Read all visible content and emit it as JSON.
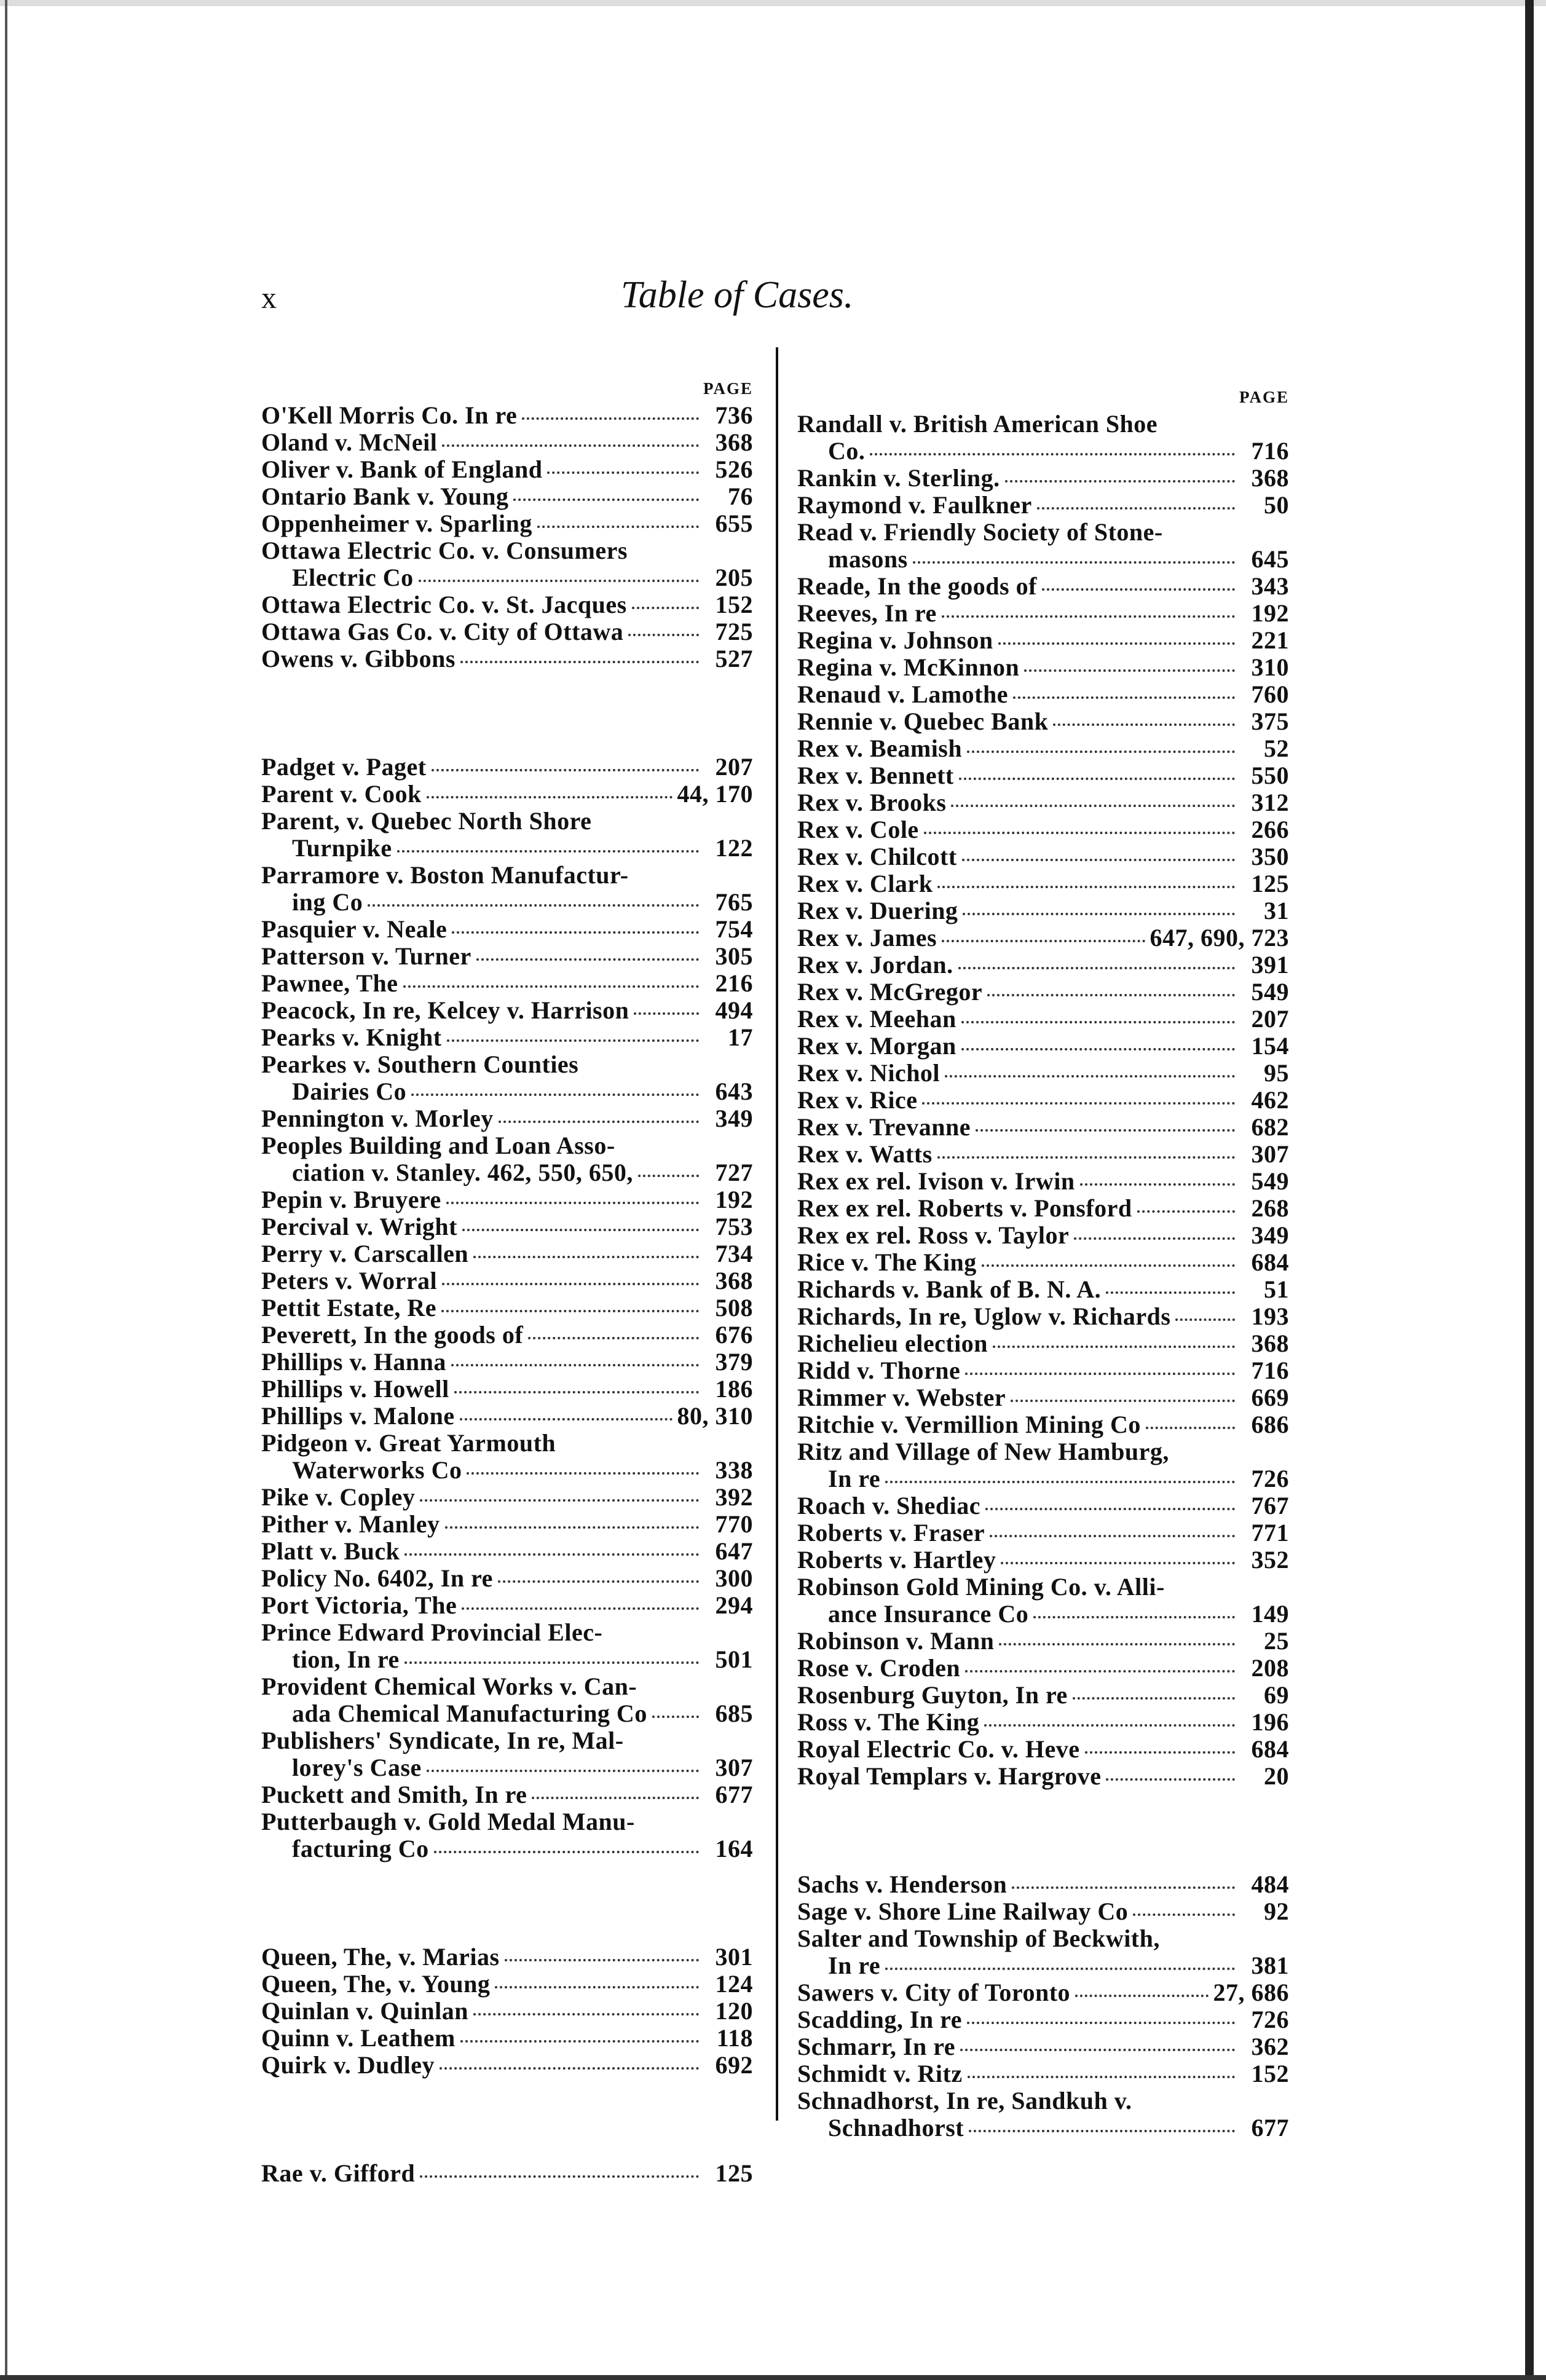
{
  "header": {
    "page_number": "x",
    "title": "Table of Cases."
  },
  "page_label": "PAGE",
  "left": [
    {
      "name": "O'Kell Morris Co. In re",
      "page": "736"
    },
    {
      "name": "Oland v. McNeil",
      "page": "368"
    },
    {
      "name": "Oliver v. Bank of England",
      "page": "526"
    },
    {
      "name": "Ontario Bank v. Young",
      "page": "76"
    },
    {
      "name": "Oppenheimer v. Sparling",
      "page": "655"
    },
    {
      "name": "Ottawa Electric Co. v. Consumers",
      "cont": "Electric Co",
      "page": "205"
    },
    {
      "name": "Ottawa Electric Co. v. St. Jacques",
      "page": "152"
    },
    {
      "name": "Ottawa Gas Co. v. City of Ottawa",
      "page": "725"
    },
    {
      "name": "Owens v. Gibbons",
      "page": "527"
    },
    {
      "gap": true
    },
    {
      "name": "Padget v. Paget",
      "page": "207"
    },
    {
      "name": "Parent v. Cook",
      "page": "44, 170"
    },
    {
      "name": "Parent, v. Quebec North Shore",
      "cont": "Turnpike",
      "page": "122"
    },
    {
      "name": "Parramore v. Boston Manufactur-",
      "cont": "ing Co",
      "page": "765"
    },
    {
      "name": "Pasquier v. Neale",
      "page": "754"
    },
    {
      "name": "Patterson v. Turner",
      "page": "305"
    },
    {
      "name": "Pawnee, The",
      "page": "216"
    },
    {
      "name": "Peacock, In re, Kelcey v. Harrison",
      "page": "494"
    },
    {
      "name": "Pearks v. Knight",
      "page": "17"
    },
    {
      "name": "Pearkes v. Southern Counties",
      "cont": "Dairies Co",
      "page": "643"
    },
    {
      "name": "Pennington v. Morley",
      "page": "349"
    },
    {
      "name": "Peoples Building and Loan Asso-",
      "cont": "ciation v. Stanley. 462, 550, 650,",
      "page": "727"
    },
    {
      "name": "Pepin v. Bruyere",
      "page": "192"
    },
    {
      "name": "Percival v. Wright",
      "page": "753"
    },
    {
      "name": "Perry v. Carscallen",
      "page": "734"
    },
    {
      "name": "Peters v. Worral",
      "page": "368"
    },
    {
      "name": "Pettit Estate, Re",
      "page": "508"
    },
    {
      "name": "Peverett, In the goods of",
      "page": "676"
    },
    {
      "name": "Phillips v. Hanna",
      "page": "379"
    },
    {
      "name": "Phillips v. Howell",
      "page": "186"
    },
    {
      "name": "Phillips v. Malone",
      "page": "80, 310"
    },
    {
      "name": "Pidgeon v. Great Yarmouth",
      "cont": "Waterworks Co",
      "page": "338"
    },
    {
      "name": "Pike v. Copley",
      "page": "392"
    },
    {
      "name": "Pither v. Manley",
      "page": "770"
    },
    {
      "name": "Platt v. Buck",
      "page": "647"
    },
    {
      "name": "Policy No. 6402, In re",
      "page": "300"
    },
    {
      "name": "Port Victoria, The",
      "page": "294"
    },
    {
      "name": "Prince Edward Provincial Elec-",
      "cont": "tion, In re",
      "page": "501"
    },
    {
      "name": "Provident Chemical Works v. Can-",
      "cont": "ada Chemical Manufacturing Co",
      "page": "685"
    },
    {
      "name": "Publishers' Syndicate, In re, Mal-",
      "cont": "lorey's Case",
      "page": "307"
    },
    {
      "name": "Puckett and Smith, In re",
      "page": "677"
    },
    {
      "name": "Putterbaugh v. Gold Medal Manu-",
      "cont": "facturing Co",
      "page": "164"
    },
    {
      "gap": true
    },
    {
      "name": "Queen, The, v. Marias",
      "page": "301"
    },
    {
      "name": "Queen, The, v. Young",
      "page": "124"
    },
    {
      "name": "Quinlan v. Quinlan",
      "page": "120"
    },
    {
      "name": "Quinn v. Leathem",
      "page": "118"
    },
    {
      "name": "Quirk v. Dudley",
      "page": "692"
    },
    {
      "gap": true
    },
    {
      "name": "Rae v. Gifford",
      "page": "125"
    }
  ],
  "right": [
    {
      "name": "Randall v. British American Shoe",
      "cont": "Co.",
      "page": "716"
    },
    {
      "name": "Rankin v. Sterling.",
      "page": "368"
    },
    {
      "name": "Raymond v. Faulkner",
      "page": "50"
    },
    {
      "name": "Read v. Friendly Society of Stone-",
      "cont": "masons",
      "page": "645"
    },
    {
      "name": "Reade, In the goods of",
      "page": "343"
    },
    {
      "name": "Reeves, In re",
      "page": "192"
    },
    {
      "name": "Regina v. Johnson",
      "page": "221"
    },
    {
      "name": "Regina v. McKinnon",
      "page": "310"
    },
    {
      "name": "Renaud v. Lamothe",
      "page": "760"
    },
    {
      "name": "Rennie v. Quebec Bank",
      "page": "375"
    },
    {
      "name": "Rex v. Beamish",
      "page": "52"
    },
    {
      "name": "Rex v. Bennett",
      "page": "550"
    },
    {
      "name": "Rex v. Brooks",
      "page": "312"
    },
    {
      "name": "Rex v. Cole",
      "page": "266"
    },
    {
      "name": "Rex v. Chilcott",
      "page": "350"
    },
    {
      "name": "Rex v. Clark",
      "page": "125"
    },
    {
      "name": "Rex v. Duering",
      "page": "31"
    },
    {
      "name": "Rex v. James",
      "page": "647, 690, 723"
    },
    {
      "name": "Rex v. Jordan.",
      "page": "391"
    },
    {
      "name": "Rex v. McGregor",
      "page": "549"
    },
    {
      "name": "Rex v. Meehan",
      "page": "207"
    },
    {
      "name": "Rex v. Morgan",
      "page": "154"
    },
    {
      "name": "Rex v. Nichol",
      "page": "95"
    },
    {
      "name": "Rex v. Rice",
      "page": "462"
    },
    {
      "name": "Rex v. Trevanne",
      "page": "682"
    },
    {
      "name": "Rex v. Watts",
      "page": "307"
    },
    {
      "name": "Rex ex rel. Ivison v. Irwin",
      "page": "549"
    },
    {
      "name": "Rex ex rel. Roberts v. Ponsford",
      "page": "268"
    },
    {
      "name": "Rex ex rel. Ross v. Taylor",
      "page": "349"
    },
    {
      "name": "Rice v. The King",
      "page": "684"
    },
    {
      "name": "Richards v. Bank of B. N. A.",
      "page": "51"
    },
    {
      "name": "Richards, In re, Uglow v. Richards",
      "page": "193"
    },
    {
      "name": "Richelieu election",
      "page": "368"
    },
    {
      "name": "Ridd v. Thorne",
      "page": "716"
    },
    {
      "name": "Rimmer v. Webster",
      "page": "669"
    },
    {
      "name": "Ritchie v. Vermillion Mining Co",
      "page": "686"
    },
    {
      "name": "Ritz and Village of New Hamburg,",
      "cont": "In re",
      "page": "726"
    },
    {
      "name": "Roach v. Shediac",
      "page": "767"
    },
    {
      "name": "Roberts v. Fraser",
      "page": "771"
    },
    {
      "name": "Roberts v. Hartley",
      "page": "352"
    },
    {
      "name": "Robinson Gold Mining Co. v. Alli-",
      "cont": "ance Insurance Co",
      "page": "149"
    },
    {
      "name": "Robinson v. Mann",
      "page": "25"
    },
    {
      "name": "Rose v. Croden",
      "page": "208"
    },
    {
      "name": "Rosenburg Guyton, In re",
      "page": "69"
    },
    {
      "name": "Ross v. The King",
      "page": "196"
    },
    {
      "name": "Royal Electric Co. v. Heve",
      "page": "684"
    },
    {
      "name": "Royal Templars v. Hargrove",
      "page": "20"
    },
    {
      "gap": true
    },
    {
      "name": "Sachs v. Henderson",
      "page": "484"
    },
    {
      "name": "Sage v. Shore Line Railway Co",
      "page": "92"
    },
    {
      "name": "Salter and Township of Beckwith,",
      "cont": "In re",
      "page": "381"
    },
    {
      "name": "Sawers v. City of Toronto",
      "page": "27, 686"
    },
    {
      "name": "Scadding, In re",
      "page": "726"
    },
    {
      "name": "Schmarr, In re",
      "page": "362"
    },
    {
      "name": "Schmidt v. Ritz",
      "page": "152"
    },
    {
      "name": "Schnadhorst, In re, Sandkuh v.",
      "cont": "Schnadhorst",
      "page": "677"
    }
  ]
}
